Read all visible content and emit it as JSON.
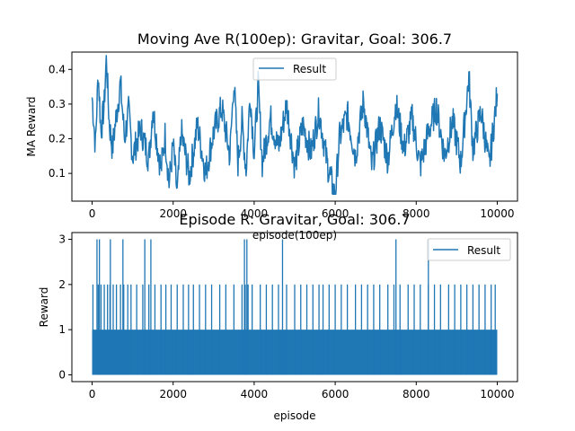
{
  "chart_data": [
    {
      "type": "line",
      "title": "Moving Ave R(100ep): Gravitar, Goal: 306.7",
      "xlabel": "episode(100ep)",
      "ylabel": "MA Reward",
      "xlim": [
        -500,
        10500
      ],
      "ylim": [
        0.02,
        0.45
      ],
      "xticks": [
        0,
        2000,
        4000,
        6000,
        8000,
        10000
      ],
      "yticks": [
        0.1,
        0.2,
        0.3,
        0.4
      ],
      "ytick_labels": [
        "0.1",
        "0.2",
        "0.3",
        "0.4"
      ],
      "legend": {
        "position": "top-center",
        "entries": [
          "Result"
        ]
      },
      "grid": false,
      "series": [
        {
          "name": "Result",
          "color": "#1f77b4",
          "x_range": [
            0,
            10000
          ],
          "points": [
            [
              0,
              0.32
            ],
            [
              80,
              0.18
            ],
            [
              150,
              0.39
            ],
            [
              220,
              0.22
            ],
            [
              300,
              0.3
            ],
            [
              350,
              0.44
            ],
            [
              420,
              0.25
            ],
            [
              500,
              0.17
            ],
            [
              600,
              0.27
            ],
            [
              700,
              0.36
            ],
            [
              800,
              0.2
            ],
            [
              900,
              0.28
            ],
            [
              1000,
              0.15
            ],
            [
              1200,
              0.23
            ],
            [
              1400,
              0.14
            ],
            [
              1500,
              0.29
            ],
            [
              1600,
              0.19
            ],
            [
              1700,
              0.11
            ],
            [
              1800,
              0.21
            ],
            [
              1900,
              0.07
            ],
            [
              2000,
              0.18
            ],
            [
              2100,
              0.04
            ],
            [
              2200,
              0.22
            ],
            [
              2400,
              0.09
            ],
            [
              2600,
              0.24
            ],
            [
              2800,
              0.1
            ],
            [
              3000,
              0.22
            ],
            [
              3200,
              0.29
            ],
            [
              3400,
              0.15
            ],
            [
              3500,
              0.37
            ],
            [
              3600,
              0.13
            ],
            [
              3700,
              0.25
            ],
            [
              3800,
              0.11
            ],
            [
              3900,
              0.33
            ],
            [
              4000,
              0.16
            ],
            [
              4100,
              0.35
            ],
            [
              4200,
              0.13
            ],
            [
              4400,
              0.26
            ],
            [
              4600,
              0.17
            ],
            [
              4800,
              0.3
            ],
            [
              5000,
              0.12
            ],
            [
              5200,
              0.24
            ],
            [
              5400,
              0.16
            ],
            [
              5600,
              0.28
            ],
            [
              5800,
              0.13
            ],
            [
              6000,
              0.03
            ],
            [
              6100,
              0.2
            ],
            [
              6300,
              0.27
            ],
            [
              6500,
              0.15
            ],
            [
              6700,
              0.31
            ],
            [
              6900,
              0.12
            ],
            [
              7100,
              0.24
            ],
            [
              7300,
              0.14
            ],
            [
              7500,
              0.3
            ],
            [
              7700,
              0.17
            ],
            [
              7900,
              0.26
            ],
            [
              8100,
              0.12
            ],
            [
              8300,
              0.22
            ],
            [
              8500,
              0.29
            ],
            [
              8700,
              0.15
            ],
            [
              8900,
              0.25
            ],
            [
              9100,
              0.13
            ],
            [
              9300,
              0.38
            ],
            [
              9400,
              0.17
            ],
            [
              9600,
              0.28
            ],
            [
              9800,
              0.12
            ],
            [
              10000,
              0.33
            ]
          ]
        }
      ]
    },
    {
      "type": "line",
      "title": "Episode R: Gravitar, Goal: 306.7",
      "xlabel": "episode",
      "ylabel": "Reward",
      "xlim": [
        -500,
        10500
      ],
      "ylim": [
        -0.15,
        3.15
      ],
      "xticks": [
        0,
        2000,
        4000,
        6000,
        8000,
        10000
      ],
      "yticks": [
        0,
        1,
        2,
        3
      ],
      "legend": {
        "position": "top-right",
        "entries": [
          "Result"
        ]
      },
      "grid": false,
      "series": [
        {
          "name": "Result",
          "color": "#1f77b4",
          "x_range": [
            0,
            10000
          ],
          "values_taken": [
            0,
            1,
            2,
            3
          ],
          "value_1_band": [
            0,
            10000
          ],
          "value_2_episodes": [
            20,
            150,
            220,
            300,
            380,
            440,
            520,
            600,
            700,
            780,
            880,
            960,
            1100,
            1250,
            1400,
            1550,
            1700,
            1820,
            1950,
            2100,
            2250,
            2380,
            2500,
            2650,
            2800,
            2950,
            3150,
            3300,
            3500,
            3700,
            3780,
            3850,
            3950,
            4150,
            4300,
            4450,
            4600,
            4800,
            5000,
            5150,
            5300,
            5450,
            5600,
            5700,
            5850,
            6000,
            6150,
            6300,
            6500,
            6650,
            6800,
            6950,
            7100,
            7300,
            7450,
            7600,
            7800,
            7950,
            8100,
            8300,
            8450,
            8600,
            8800,
            8950,
            9100,
            9250,
            9400,
            9550,
            9700,
            9850,
            9950
          ],
          "value_3_episodes": [
            120,
            180,
            450,
            760,
            1300,
            1450,
            3760,
            3820,
            4700,
            7500,
            8300
          ]
        }
      ]
    }
  ]
}
